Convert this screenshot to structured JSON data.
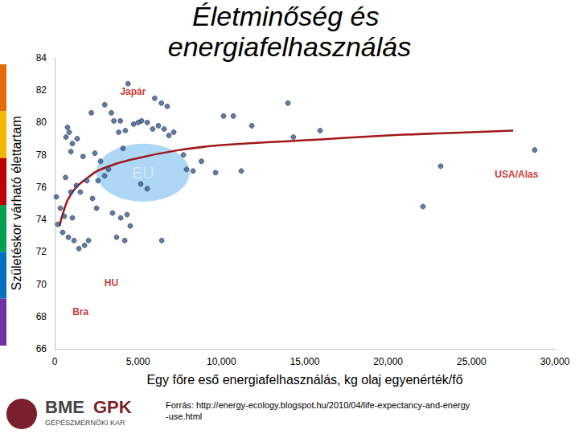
{
  "chart_data": {
    "type": "scatter",
    "title": "Életminőség és energiafelhasználás",
    "x_label": "Egy főre eső energiafelhasználás, kg olaj egyenérték/fő",
    "y_label": "Születéskor várható élettartam",
    "xlim": [
      0,
      30000
    ],
    "xticks": [
      0,
      5000,
      10000,
      15000,
      20000,
      25000,
      30000
    ],
    "ylim": [
      66,
      84
    ],
    "yticks": [
      66,
      68,
      70,
      72,
      74,
      76,
      78,
      80,
      82,
      84
    ],
    "grid": false,
    "series": [
      {
        "type": "scatter",
        "color": "#3b5a8a",
        "marker": "circle",
        "x": [
          4400,
          3000,
          3400,
          6400,
          6750,
          6000,
          770,
          870,
          680,
          1060,
          970,
          3840,
          4240,
          4730,
          5010,
          5210,
          5550,
          5880,
          6220,
          6560,
          6850,
          7140,
          3550,
          3940,
          10130,
          10710,
          11820,
          13990,
          14320,
          15920,
          23150,
          22090,
          28790,
          7720,
          7910,
          8300,
          9650,
          11190,
          6420,
          100,
          340,
          580,
          1060,
          190,
          480,
          820,
          1160,
          1450,
          1790,
          2030,
          970,
          1300,
          1540,
          1930,
          2270,
          2600,
          2990,
          3230,
          3470,
          3960,
          4340,
          3710,
          4200,
          4530,
          2510,
          2410,
          2750,
          5160,
          5550,
          8800,
          1350,
          1700,
          4100,
          650,
          2200
        ],
        "values": [
          82.4,
          81.1,
          80.6,
          81.2,
          81.0,
          81.5,
          79.7,
          79.4,
          79.1,
          78.7,
          78.2,
          79.4,
          79.5,
          79.9,
          80.0,
          80.1,
          80.0,
          79.6,
          79.8,
          79.6,
          79.2,
          79.4,
          80.1,
          80.1,
          80.4,
          80.4,
          79.8,
          81.2,
          79.1,
          79.5,
          77.3,
          74.8,
          78.3,
          78.0,
          77.1,
          77.0,
          76.9,
          77.0,
          72.7,
          75.4,
          74.7,
          74.2,
          74.1,
          73.7,
          73.2,
          72.9,
          72.7,
          72.2,
          72.4,
          72.7,
          75.7,
          76.1,
          75.7,
          76.4,
          75.3,
          76.4,
          76.7,
          77.1,
          74.4,
          74.1,
          74.3,
          72.9,
          72.7,
          73.6,
          74.7,
          78.1,
          77.6,
          76.2,
          75.9,
          77.6,
          79.0,
          77.9,
          78.4,
          76.6,
          80.6
        ]
      },
      {
        "type": "line",
        "color": "#a01818",
        "line_style": "solid",
        "x": [
          300,
          500,
          1000,
          2000,
          3000,
          5000,
          7500,
          10000,
          15000,
          20000,
          25000,
          27500
        ],
        "values": [
          73.6,
          74.4,
          75.6,
          76.6,
          77.2,
          77.8,
          78.3,
          78.6,
          78.9,
          79.2,
          79.4,
          79.5
        ]
      }
    ],
    "annotations": [
      {
        "text": "Japár",
        "x": 4700,
        "y": 81.9,
        "color": "#c00000"
      },
      {
        "text": "EU",
        "x": 5300,
        "y": 76.9,
        "color": "#dbe9f5",
        "marker": "ellipse"
      },
      {
        "text": "USA/Alas",
        "x": 27700,
        "y": 76.8,
        "color": "#c00000"
      },
      {
        "text": "HU",
        "x": 3400,
        "y": 70.1,
        "color": "#c00000"
      },
      {
        "text": "Bra",
        "x": 1550,
        "y": 68.3,
        "color": "#c00000"
      }
    ],
    "source": "Forrás: http://energy-ecology.blogspot.hu/2010/04/life-expectancy-and-energy-use.html",
    "logo": [
      "BME",
      "GPK",
      "GÉPÉSZMÉRNÖKI KAR"
    ]
  }
}
